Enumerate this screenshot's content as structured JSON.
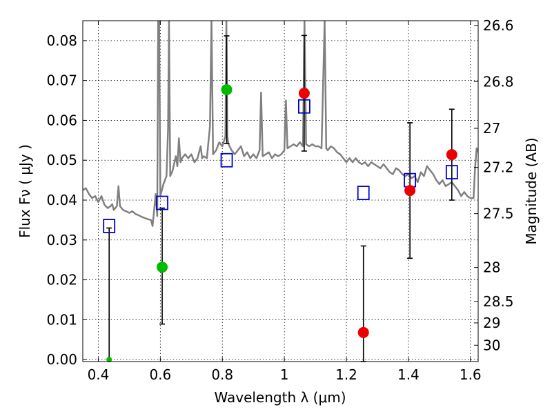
{
  "chart_data": {
    "type": "scatter",
    "xlabel": "Wavelength  λ (μm)",
    "ylabel": "Flux  Fν  ( μJy )",
    "ylabel_right": "Magnitude (AB)",
    "xlim": [
      0.35,
      1.625
    ],
    "ylim": [
      -0.0005,
      0.085
    ],
    "grid": true,
    "x_ticks": [
      0.4,
      0.6,
      0.8,
      1.0,
      1.2,
      1.4,
      1.6
    ],
    "x_tick_labels": [
      "0.4",
      "0.6",
      "0.8",
      "1",
      "1.2",
      "1.4",
      "1.6"
    ],
    "y_ticks": [
      0.0,
      0.01,
      0.02,
      0.03,
      0.04,
      0.05,
      0.06,
      0.07,
      0.08
    ],
    "y_tick_labels": [
      "0.00",
      "0.01",
      "0.02",
      "0.03",
      "0.04",
      "0.05",
      "0.06",
      "0.07",
      "0.08"
    ],
    "right_ticks": [
      {
        "label": "26.6",
        "flux": 0.0838
      },
      {
        "label": "26.8",
        "flux": 0.0697
      },
      {
        "label": "27",
        "flux": 0.058
      },
      {
        "label": "27.2",
        "flux": 0.0482
      },
      {
        "label": "27.5",
        "flux": 0.0366
      },
      {
        "label": "28",
        "flux": 0.0231
      },
      {
        "label": "28.5",
        "flux": 0.0146
      },
      {
        "label": "29",
        "flux": 0.0092
      },
      {
        "label": "30",
        "flux": 0.0036
      }
    ],
    "template_spectrum": {
      "color": "#808080",
      "points": [
        [
          0.35,
          0.0425
        ],
        [
          0.36,
          0.043
        ],
        [
          0.37,
          0.0415
        ],
        [
          0.38,
          0.0405
        ],
        [
          0.39,
          0.041
        ],
        [
          0.4,
          0.0395
        ],
        [
          0.41,
          0.041
        ],
        [
          0.42,
          0.0388
        ],
        [
          0.43,
          0.038
        ],
        [
          0.44,
          0.0385
        ],
        [
          0.445,
          0.039
        ],
        [
          0.45,
          0.0375
        ],
        [
          0.46,
          0.0385
        ],
        [
          0.465,
          0.0435
        ],
        [
          0.47,
          0.0385
        ],
        [
          0.48,
          0.0375
        ],
        [
          0.49,
          0.0372
        ],
        [
          0.5,
          0.0368
        ],
        [
          0.51,
          0.0372
        ],
        [
          0.52,
          0.0365
        ],
        [
          0.53,
          0.0362
        ],
        [
          0.54,
          0.0358
        ],
        [
          0.55,
          0.0355
        ],
        [
          0.56,
          0.0352
        ],
        [
          0.57,
          0.035
        ],
        [
          0.575,
          0.0335
        ],
        [
          0.58,
          0.0375
        ],
        [
          0.585,
          0.0415
        ],
        [
          0.59,
          0.036
        ],
        [
          0.593,
          0.085
        ],
        [
          0.596,
          0.085
        ],
        [
          0.6,
          0.041
        ],
        [
          0.61,
          0.044
        ],
        [
          0.62,
          0.046
        ],
        [
          0.625,
          0.058
        ],
        [
          0.628,
          0.085
        ],
        [
          0.632,
          0.046
        ],
        [
          0.64,
          0.0475
        ],
        [
          0.65,
          0.051
        ],
        [
          0.655,
          0.0485
        ],
        [
          0.66,
          0.0555
        ],
        [
          0.665,
          0.0495
        ],
        [
          0.67,
          0.0505
        ],
        [
          0.68,
          0.0515
        ],
        [
          0.69,
          0.0505
        ],
        [
          0.7,
          0.0515
        ],
        [
          0.71,
          0.0495
        ],
        [
          0.72,
          0.0505
        ],
        [
          0.73,
          0.0535
        ],
        [
          0.735,
          0.0505
        ],
        [
          0.74,
          0.051
        ],
        [
          0.75,
          0.0505
        ],
        [
          0.76,
          0.0585
        ],
        [
          0.765,
          0.085
        ],
        [
          0.77,
          0.0515
        ],
        [
          0.78,
          0.0525
        ],
        [
          0.79,
          0.0545
        ],
        [
          0.8,
          0.0535
        ],
        [
          0.81,
          0.056
        ],
        [
          0.813,
          0.085
        ],
        [
          0.816,
          0.056
        ],
        [
          0.82,
          0.054
        ],
        [
          0.83,
          0.0525
        ],
        [
          0.84,
          0.0515
        ],
        [
          0.85,
          0.0525
        ],
        [
          0.86,
          0.0535
        ],
        [
          0.87,
          0.051
        ],
        [
          0.88,
          0.052
        ],
        [
          0.89,
          0.0505
        ],
        [
          0.9,
          0.0515
        ],
        [
          0.91,
          0.0505
        ],
        [
          0.92,
          0.0525
        ],
        [
          0.925,
          0.067
        ],
        [
          0.93,
          0.051
        ],
        [
          0.94,
          0.0515
        ],
        [
          0.95,
          0.052
        ],
        [
          0.96,
          0.0505
        ],
        [
          0.97,
          0.0515
        ],
        [
          0.98,
          0.051
        ],
        [
          0.99,
          0.0515
        ],
        [
          1.0,
          0.0525
        ],
        [
          1.005,
          0.065
        ],
        [
          1.01,
          0.053
        ],
        [
          1.02,
          0.0535
        ],
        [
          1.03,
          0.054
        ],
        [
          1.04,
          0.0535
        ],
        [
          1.05,
          0.0545
        ],
        [
          1.06,
          0.0535
        ],
        [
          1.065,
          0.085
        ],
        [
          1.07,
          0.054
        ],
        [
          1.08,
          0.0535
        ],
        [
          1.09,
          0.054
        ],
        [
          1.1,
          0.0535
        ],
        [
          1.11,
          0.0535
        ],
        [
          1.12,
          0.053
        ],
        [
          1.13,
          0.085
        ],
        [
          1.135,
          0.053
        ],
        [
          1.14,
          0.0525
        ],
        [
          1.15,
          0.0535
        ],
        [
          1.16,
          0.053
        ],
        [
          1.17,
          0.052
        ],
        [
          1.18,
          0.0515
        ],
        [
          1.19,
          0.0505
        ],
        [
          1.2,
          0.0495
        ],
        [
          1.21,
          0.0505
        ],
        [
          1.22,
          0.0495
        ],
        [
          1.23,
          0.0505
        ],
        [
          1.24,
          0.0495
        ],
        [
          1.25,
          0.049
        ],
        [
          1.26,
          0.0495
        ],
        [
          1.27,
          0.0485
        ],
        [
          1.28,
          0.0495
        ],
        [
          1.29,
          0.049
        ],
        [
          1.3,
          0.0485
        ],
        [
          1.31,
          0.048
        ],
        [
          1.32,
          0.049
        ],
        [
          1.33,
          0.048
        ],
        [
          1.34,
          0.047
        ],
        [
          1.35,
          0.0465
        ],
        [
          1.36,
          0.048
        ],
        [
          1.37,
          0.0475
        ],
        [
          1.38,
          0.0465
        ],
        [
          1.39,
          0.046
        ],
        [
          1.4,
          0.0465
        ],
        [
          1.41,
          0.0455
        ],
        [
          1.42,
          0.046
        ],
        [
          1.43,
          0.0445
        ],
        [
          1.44,
          0.047
        ],
        [
          1.45,
          0.046
        ],
        [
          1.46,
          0.0485
        ],
        [
          1.47,
          0.0475
        ],
        [
          1.48,
          0.0465
        ],
        [
          1.49,
          0.045
        ],
        [
          1.5,
          0.044
        ],
        [
          1.51,
          0.045
        ],
        [
          1.52,
          0.0435
        ],
        [
          1.53,
          0.044
        ],
        [
          1.54,
          0.0445
        ],
        [
          1.55,
          0.0435
        ],
        [
          1.56,
          0.0425
        ],
        [
          1.57,
          0.041
        ],
        [
          1.58,
          0.042
        ],
        [
          1.59,
          0.041
        ],
        [
          1.6,
          0.0405
        ],
        [
          1.61,
          0.0405
        ],
        [
          1.615,
          0.048
        ],
        [
          1.62,
          0.053
        ],
        [
          1.625,
          0.052
        ]
      ]
    },
    "model_photometry": {
      "marker": "open-square",
      "color": "#0000cc",
      "points": [
        {
          "x": 0.435,
          "y": 0.0335
        },
        {
          "x": 0.606,
          "y": 0.0393
        },
        {
          "x": 0.814,
          "y": 0.05
        },
        {
          "x": 1.064,
          "y": 0.0635
        },
        {
          "x": 1.255,
          "y": 0.0418
        },
        {
          "x": 1.405,
          "y": 0.045
        },
        {
          "x": 1.54,
          "y": 0.047
        }
      ]
    },
    "observed_optical": {
      "marker": "filled-circle",
      "color": "#00bb00",
      "points": [
        {
          "x": 0.435,
          "y": 0.0,
          "err_low": 0.0,
          "err_high": 0.033
        },
        {
          "x": 0.606,
          "y": 0.0232,
          "err_low": 0.0143,
          "err_high": 0.0148
        },
        {
          "x": 0.814,
          "y": 0.0677,
          "err_low": 0.0135,
          "err_high": 0.0135
        }
      ]
    },
    "observed_nir": {
      "marker": "filled-circle",
      "color": "#ee0000",
      "points": [
        {
          "x": 1.064,
          "y": 0.0668,
          "err_low": 0.0145,
          "err_high": 0.0145
        },
        {
          "x": 1.255,
          "y": 0.0068,
          "err_low": 0.0073,
          "err_high": 0.0217
        },
        {
          "x": 1.405,
          "y": 0.0424,
          "err_low": 0.017,
          "err_high": 0.017
        },
        {
          "x": 1.54,
          "y": 0.0514,
          "err_low": 0.0114,
          "err_high": 0.0114
        }
      ]
    }
  }
}
